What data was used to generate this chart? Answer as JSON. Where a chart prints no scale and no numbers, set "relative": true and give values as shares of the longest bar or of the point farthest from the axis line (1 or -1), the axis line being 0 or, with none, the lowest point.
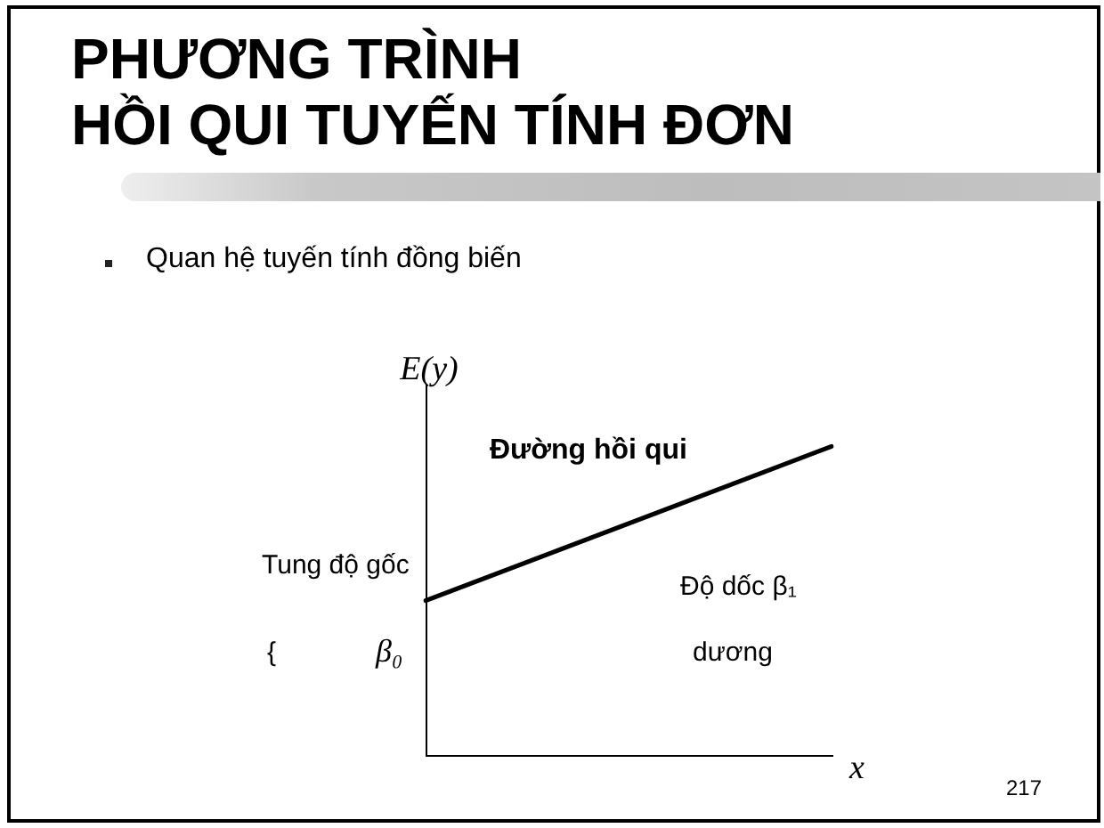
{
  "chart_data": {
    "type": "line",
    "title": "PHƯƠNG TRÌNH\nHỒI QUI TUYẾN TÍNH ĐƠN",
    "subtitle": "Quan hệ tuyến tính đồng biến",
    "xlabel": "x",
    "ylabel": "E(y)",
    "categories": [
      null,
      null
    ],
    "values": [
      0.5,
      1
    ],
    "color": "#000000",
    "relative": true,
    "marker": "none",
    "line_style": "solid",
    "annotations": [
      "Đường hồi qui",
      "Tung độ gốc",
      "{",
      "β₀",
      "Độ dốc β₁",
      "dương",
      "217"
    ]
  }
}
